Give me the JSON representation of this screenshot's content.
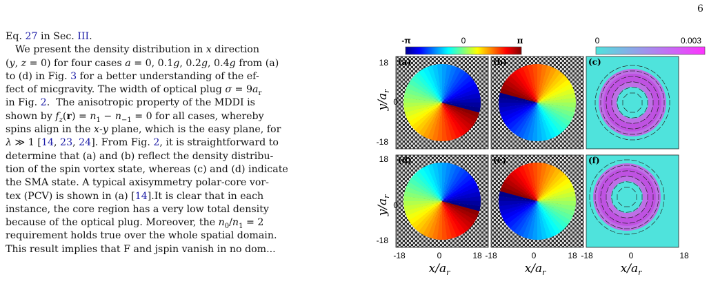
{
  "page_number": "6",
  "body_lines": [
    "Eq. 27 in Sec. III.",
    "We present the density distribution in x direction",
    "(y, z = 0) for four cases a = 0, 0.1g, 0.2g, 0.4g from (a)",
    "to (d) in Fig. 3 for a better understanding of the ef-",
    "fect of micgravity. The width of optical plug σ = 9a_r",
    "in Fig. 2. The anisotropic property of the MDDI is",
    "shown by f_z(r) = n_1 − n_−1 = 0 for all cases, whereby",
    "spins align in the x-y plane, which is the easy plane, for",
    "λ ≫ 1 [14, 23, 24]. From Fig. 2, it is straightforward to",
    "determine that (a) and (b) reflect the density distribu-",
    "tion of the spin vortex state, whereas (c) and (d) indicate",
    "the SMA state. A typical axisymmetry polar-core vor-",
    "tex (PCV) is shown in (a) [14].It is clear that in each",
    "instance, the core region has a very low total density",
    "because of the optical plug. Moreover, the n_0/n_1 = 2",
    "requirement holds true over the whole spatial domain.",
    "This result implies that F and jspin vanish in no dom..."
  ],
  "figure": {
    "phase_colorbar": {
      "min_label": "-π",
      "mid_label": "0",
      "max_label": "π"
    },
    "density_colorbar": {
      "min_label": "0",
      "max_label": "0.003"
    },
    "panel_labels": [
      "(a)",
      "(b)",
      "(c)",
      "(d)",
      "(e)",
      "(f)"
    ],
    "y_ticks": [
      "18",
      "0",
      "-18"
    ],
    "x_ticks": [
      "-18",
      "0",
      "18"
    ],
    "y_axis_label": "y/a_r",
    "x_axis_label": "x/a_r",
    "colors": {
      "density_background": "#4fe3dc",
      "density_ring": "#c040e0"
    }
  }
}
